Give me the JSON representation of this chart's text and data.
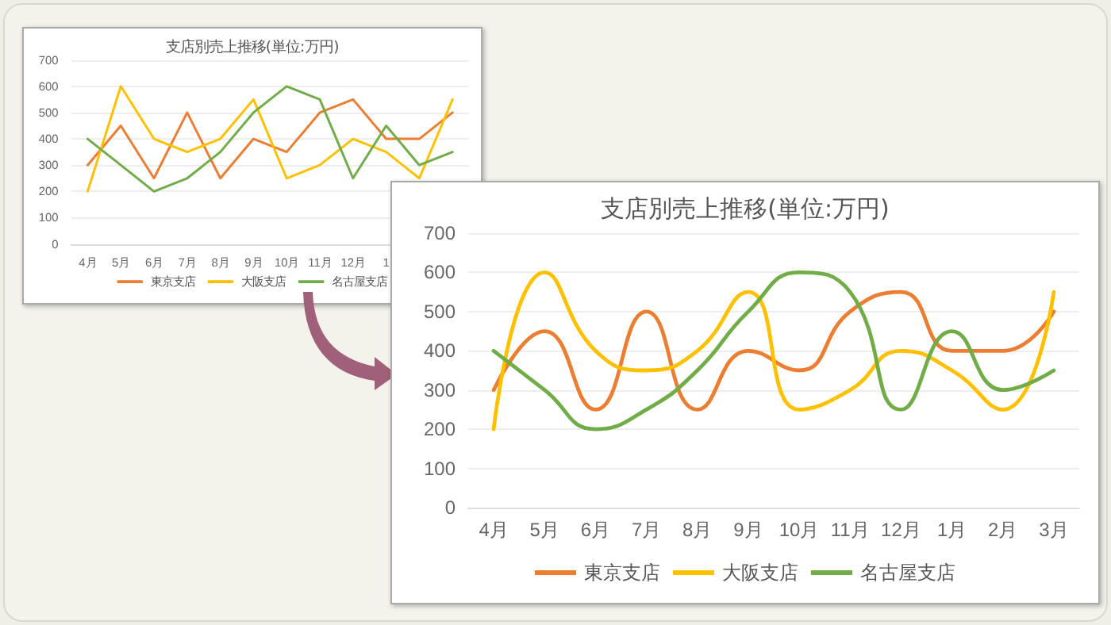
{
  "chart_data": [
    {
      "type": "line",
      "title": "支店別売上推移(単位:万円)",
      "categories": [
        "4月",
        "5月",
        "6月",
        "7月",
        "8月",
        "9月",
        "10月",
        "11月",
        "12月",
        "1",
        null,
        null
      ],
      "series": [
        {
          "name": "東京支店",
          "color": "#ed7d31",
          "values": [
            300,
            450,
            250,
            500,
            250,
            400,
            350,
            500,
            550,
            400,
            400,
            500
          ]
        },
        {
          "name": "大阪支店",
          "color": "#ffc000",
          "values": [
            200,
            600,
            400,
            350,
            400,
            550,
            250,
            300,
            400,
            350,
            250,
            550
          ]
        },
        {
          "name": "名古屋支店",
          "color": "#70ad47",
          "values": [
            400,
            300,
            200,
            250,
            350,
            500,
            600,
            550,
            250,
            450,
            300,
            350
          ]
        }
      ],
      "ylim": [
        0,
        700
      ],
      "yticks": [
        0,
        100,
        200,
        300,
        400,
        500,
        600,
        700
      ],
      "grid": "y",
      "legend": "bottom",
      "marker": "none",
      "line_style": "solid"
    },
    {
      "type": "line",
      "title": "支店別売上推移(単位:万円)",
      "categories": [
        "4月",
        "5月",
        "6月",
        "7月",
        "8月",
        "9月",
        "10月",
        "11月",
        "12月",
        "1月",
        "2月",
        "3月"
      ],
      "series": [
        {
          "name": "東京支店",
          "color": "#ed7d31",
          "values": [
            300,
            450,
            250,
            500,
            250,
            400,
            350,
            500,
            550,
            400,
            400,
            500
          ]
        },
        {
          "name": "大阪支店",
          "color": "#ffc000",
          "values": [
            200,
            600,
            400,
            350,
            400,
            550,
            250,
            300,
            400,
            350,
            250,
            550
          ]
        },
        {
          "name": "名古屋支店",
          "color": "#70ad47",
          "values": [
            400,
            300,
            200,
            250,
            350,
            500,
            600,
            550,
            250,
            450,
            300,
            350
          ]
        }
      ],
      "ylim": [
        0,
        700
      ],
      "yticks": [
        0,
        100,
        200,
        300,
        400,
        500,
        600,
        700
      ],
      "grid": "y",
      "legend": "bottom",
      "marker": "none",
      "line_style": "solid"
    }
  ]
}
